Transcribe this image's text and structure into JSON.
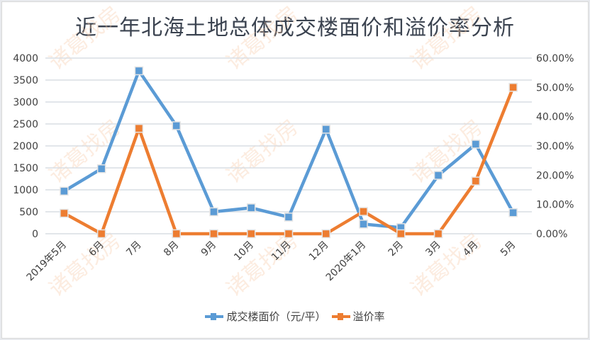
{
  "chart_data": {
    "type": "line",
    "title": "近一年北海土地总体成交楼面价和溢价率分析",
    "categories": [
      "2019年5月",
      "6月",
      "7月",
      "8月",
      "9月",
      "10月",
      "11月",
      "12月",
      "2020年1月",
      "2月",
      "3月",
      "4月",
      "5月"
    ],
    "series": [
      {
        "name": "成交楼面价（元/平）",
        "axis": "left",
        "color": "#5b9bd5",
        "values": [
          970,
          1480,
          3710,
          2460,
          500,
          590,
          380,
          2380,
          220,
          140,
          1330,
          2040,
          480
        ]
      },
      {
        "name": "溢价率",
        "axis": "right",
        "color": "#ed7d31",
        "values": [
          0.07,
          0.0,
          0.36,
          0.0,
          0.0,
          0.0,
          0.0,
          0.0,
          0.076,
          0.0,
          0.0,
          0.18,
          0.5
        ]
      }
    ],
    "y_left": {
      "ylim": [
        0,
        4000
      ],
      "ticks": [
        "0",
        "500",
        "1000",
        "1500",
        "2000",
        "2500",
        "3000",
        "3500",
        "4000"
      ]
    },
    "y_right": {
      "ylim": [
        0,
        0.6
      ],
      "ticks": [
        "0.00%",
        "10.00%",
        "20.00%",
        "30.00%",
        "40.00%",
        "50.00%",
        "60.00%"
      ]
    },
    "xlabel": "",
    "ylabel": "",
    "grid": true,
    "legend_position": "bottom"
  },
  "watermark": "诸葛找房",
  "legend": {
    "items": [
      {
        "label": "成交楼面价（元/平）",
        "color": "#5b9bd5"
      },
      {
        "label": "溢价率",
        "color": "#ed7d31"
      }
    ]
  }
}
